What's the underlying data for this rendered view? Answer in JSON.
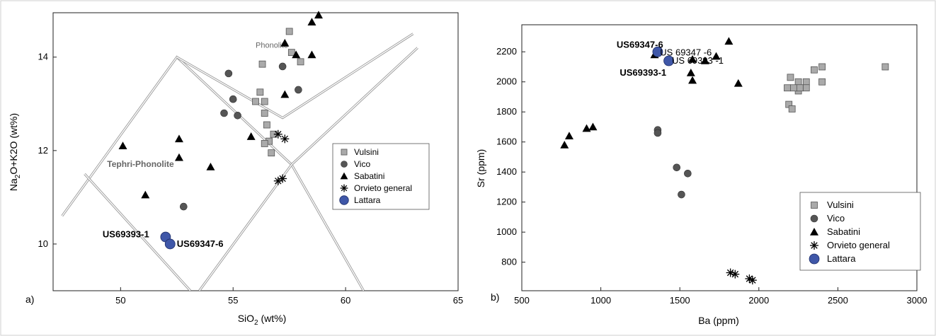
{
  "figure_frame": true,
  "chart_data": [
    {
      "id": "a",
      "type": "scatter",
      "panel_label": "a)",
      "xlabel_main": "SiO",
      "xlabel_sub": "2",
      "xlabel_tail": " (wt%)",
      "ylabel_parts": [
        "Na",
        "2",
        "O+K2O (wt%)"
      ],
      "xlim": [
        47,
        65
      ],
      "ylim": [
        9.0,
        14.95
      ],
      "xticks": [
        50,
        55,
        60,
        65
      ],
      "yticks": [
        10,
        12,
        14
      ],
      "field_labels": [
        {
          "text": "Phonolite",
          "x": 56.0,
          "y": 14.2,
          "bold": false
        },
        {
          "text": "Tephri-Phonolite",
          "x": 49.4,
          "y": 11.65,
          "bold": true
        }
      ],
      "tas_boundaries": [
        [
          [
            47.4,
            10.6
          ],
          [
            52.5,
            14.0
          ],
          [
            57.6,
            11.7
          ],
          [
            60.8,
            9.0
          ]
        ],
        [
          [
            48.4,
            11.5
          ],
          [
            53.1,
            9.0
          ]
        ],
        [
          [
            52.5,
            14.0
          ],
          [
            57.2,
            12.7
          ],
          [
            63.0,
            14.5
          ]
        ],
        [
          [
            53.5,
            9.0
          ],
          [
            57.6,
            11.7
          ],
          [
            63.2,
            14.2
          ]
        ]
      ],
      "series": [
        {
          "name": "Vulsini",
          "marker": "square",
          "color": "#aaaaaa",
          "points": [
            [
              57.5,
              14.55
            ],
            [
              56.3,
              13.85
            ],
            [
              57.6,
              14.1
            ],
            [
              58.0,
              13.9
            ],
            [
              56.2,
              13.25
            ],
            [
              56.4,
              13.05
            ],
            [
              56.0,
              13.05
            ],
            [
              56.4,
              12.8
            ],
            [
              56.5,
              12.55
            ],
            [
              56.8,
              12.35
            ],
            [
              56.6,
              12.2
            ],
            [
              56.4,
              12.15
            ],
            [
              56.7,
              11.95
            ]
          ]
        },
        {
          "name": "Vico",
          "marker": "circle",
          "color": "#555555",
          "points": [
            [
              54.8,
              13.65
            ],
            [
              57.2,
              13.8
            ],
            [
              55.0,
              13.1
            ],
            [
              57.9,
              13.3
            ],
            [
              55.2,
              12.75
            ],
            [
              54.6,
              12.8
            ],
            [
              52.8,
              10.8
            ]
          ]
        },
        {
          "name": "Sabatini",
          "marker": "triangle",
          "color": "#000000",
          "points": [
            [
              58.8,
              14.9
            ],
            [
              58.5,
              14.75
            ],
            [
              57.3,
              14.3
            ],
            [
              57.8,
              14.05
            ],
            [
              58.5,
              14.05
            ],
            [
              57.3,
              13.2
            ],
            [
              50.1,
              12.1
            ],
            [
              52.6,
              12.25
            ],
            [
              52.6,
              11.85
            ],
            [
              55.8,
              12.3
            ],
            [
              54.0,
              11.65
            ],
            [
              51.1,
              11.05
            ]
          ]
        },
        {
          "name": "Orvieto general",
          "marker": "asterisk",
          "color": "#000000",
          "points": [
            [
              57.0,
              12.35
            ],
            [
              57.3,
              12.25
            ],
            [
              57.0,
              11.35
            ],
            [
              57.2,
              11.4
            ]
          ]
        },
        {
          "name": "Lattara",
          "marker": "bigcircle",
          "color": "#3f57a8",
          "points": [
            [
              52.0,
              10.15
            ],
            [
              52.2,
              10.0
            ]
          ]
        }
      ],
      "point_labels": [
        {
          "text": "US69393-1",
          "x": 49.2,
          "y": 10.2,
          "anchor": "start"
        },
        {
          "text": "US69347-6",
          "x": 52.5,
          "y": 10.0,
          "anchor": "start"
        }
      ],
      "legend_position": "right",
      "legend": [
        "Vulsini",
        "Vico",
        "Sabatini",
        "Orvieto general",
        "Lattara"
      ]
    },
    {
      "id": "b",
      "type": "scatter",
      "panel_label": "b)",
      "xlabel": "Ba (ppm)",
      "ylabel": "Sr (ppm)",
      "xlim": [
        500,
        3000
      ],
      "ylim": [
        610,
        2380
      ],
      "xticks": [
        500,
        1000,
        1500,
        2000,
        2500,
        3000
      ],
      "yticks": [
        800,
        1000,
        1200,
        1400,
        1600,
        1800,
        2000,
        2200
      ],
      "series": [
        {
          "name": "Vulsini",
          "marker": "square",
          "color": "#aaaaaa",
          "points": [
            [
              2800,
              2100
            ],
            [
              2400,
              2100
            ],
            [
              2350,
              2080
            ],
            [
              2400,
              2000
            ],
            [
              2300,
              2000
            ],
            [
              2250,
              2000
            ],
            [
              2200,
              2030
            ],
            [
              2300,
              1960
            ],
            [
              2250,
              1940
            ],
            [
              2180,
              1960
            ],
            [
              2220,
              1960
            ],
            [
              2260,
              1960
            ],
            [
              2190,
              1850
            ],
            [
              2210,
              1820
            ]
          ]
        },
        {
          "name": "Vico",
          "marker": "circle",
          "color": "#555555",
          "points": [
            [
              1360,
              1680
            ],
            [
              1360,
              1660
            ],
            [
              1480,
              1430
            ],
            [
              1550,
              1390
            ],
            [
              1510,
              1250
            ]
          ]
        },
        {
          "name": "Sabatini",
          "marker": "triangle",
          "color": "#000000",
          "points": [
            [
              1340,
              2180
            ],
            [
              1580,
              2150
            ],
            [
              1570,
              2060
            ],
            [
              1580,
              2010
            ],
            [
              1730,
              2170
            ],
            [
              1660,
              2140
            ],
            [
              1810,
              2270
            ],
            [
              1870,
              1990
            ],
            [
              770,
              1580
            ],
            [
              800,
              1640
            ],
            [
              910,
              1690
            ],
            [
              950,
              1700
            ]
          ]
        },
        {
          "name": "Orvieto general",
          "marker": "asterisk",
          "color": "#000000",
          "points": [
            [
              1820,
              730
            ],
            [
              1850,
              720
            ],
            [
              1940,
              690
            ],
            [
              1960,
              680
            ]
          ]
        },
        {
          "name": "Lattara",
          "marker": "bigcircle",
          "color": "#3f57a8",
          "points": [
            [
              1360,
              2200
            ],
            [
              1430,
              2140
            ]
          ]
        }
      ],
      "point_labels": [
        {
          "text": "US69347-6",
          "x": 1100,
          "y": 2245,
          "anchor": "start",
          "bold": true
        },
        {
          "text": "US 69347 -6",
          "x": 1375,
          "y": 2195,
          "anchor": "start",
          "bold": false
        },
        {
          "text": "US 69393 -1",
          "x": 1450,
          "y": 2140,
          "anchor": "start",
          "bold": false
        },
        {
          "text": "US69393-1",
          "x": 1120,
          "y": 2060,
          "anchor": "start",
          "bold": true
        }
      ],
      "legend_position": "bottom-right",
      "legend": [
        "Vulsini",
        "Vico",
        "Sabatini",
        "Orvieto general",
        "Lattara"
      ]
    }
  ]
}
